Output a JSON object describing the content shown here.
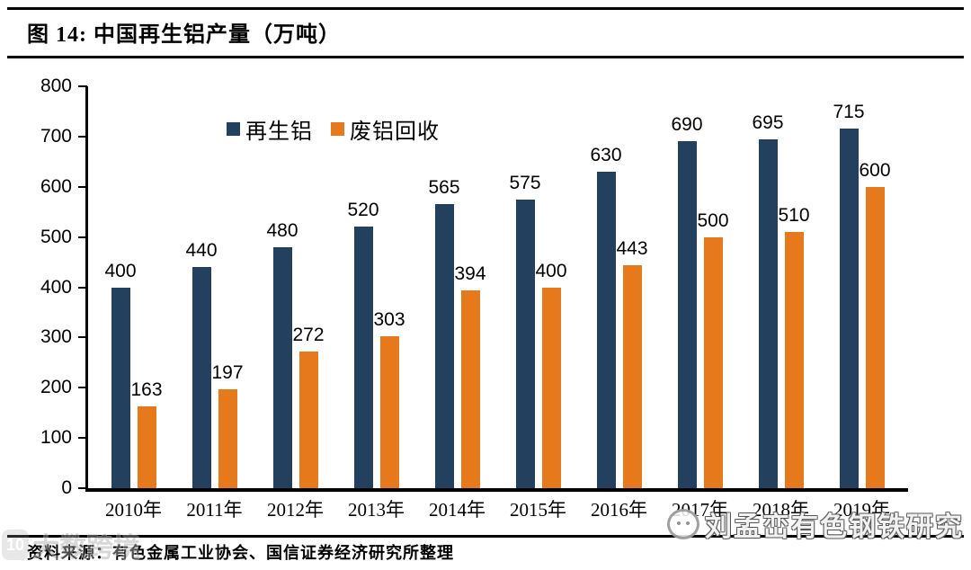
{
  "figure": {
    "title": "图 14:  中国再生铝产量（万吨）",
    "source": "资料来源：有色金属工业协会、国信证券经济研究所整理"
  },
  "chart_data": {
    "type": "bar",
    "title": "中国再生铝产量（万吨）",
    "categories": [
      "2010年",
      "2011年",
      "2012年",
      "2013年",
      "2014年",
      "2015年",
      "2016年",
      "2017年",
      "2018年",
      "2019年"
    ],
    "series": [
      {
        "name": "再生铝",
        "color": "#24405F",
        "values": [
          400,
          440,
          480,
          520,
          565,
          575,
          630,
          690,
          695,
          715
        ]
      },
      {
        "name": "废铝回收",
        "color": "#E5791B",
        "values": [
          163,
          197,
          272,
          303,
          394,
          400,
          443,
          500,
          510,
          600
        ]
      }
    ],
    "xlabel": "",
    "ylabel": "",
    "ylim": [
      0,
      800
    ],
    "yticks": [
      0,
      100,
      200,
      300,
      400,
      500,
      600,
      700,
      800
    ],
    "grid": false,
    "legend_position": "top-inside",
    "bar_value_labels": true
  },
  "watermarks": {
    "bottom_left": "大数跨境",
    "bottom_right": "刘孟峦有色钢铁研究"
  }
}
